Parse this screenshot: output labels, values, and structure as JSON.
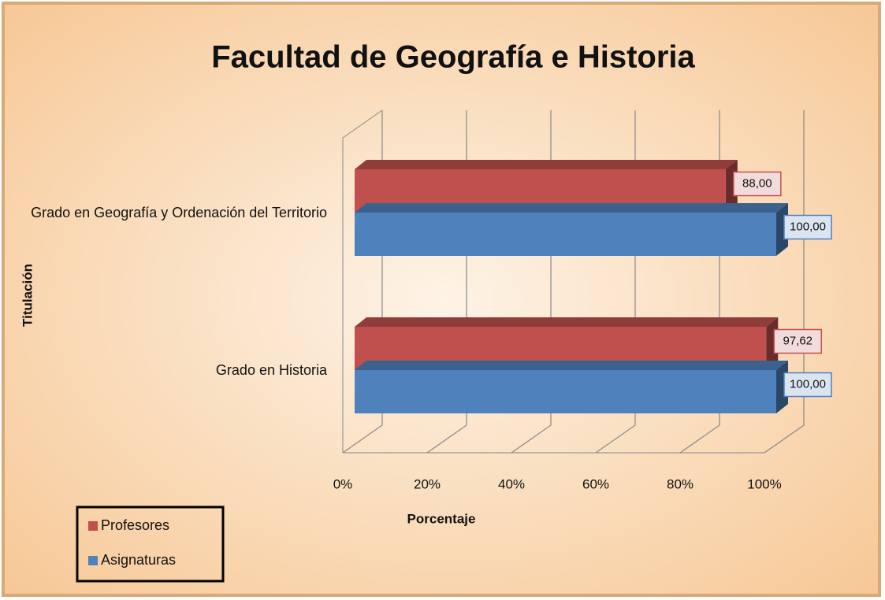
{
  "chart_data": {
    "type": "bar3d",
    "title": "Facultad de Geografía e Historia",
    "categories": [
      "Grado en Geografía y Ordenación del Territorio",
      "Grado en Historia"
    ],
    "series": [
      {
        "name": "Profesores",
        "color": "#c0504d",
        "values": [
          88,
          97.62
        ],
        "value_labels": [
          "88,00",
          "97,62"
        ]
      },
      {
        "name": "Asignaturas",
        "color": "#4f81bd",
        "values": [
          100,
          100
        ],
        "value_labels": [
          "100,00",
          "100,00"
        ]
      }
    ],
    "xlim": [
      0,
      100
    ],
    "xticks": [
      {
        "value": 0,
        "label": "0%"
      },
      {
        "value": 20,
        "label": "20%"
      },
      {
        "value": 40,
        "label": "40%"
      },
      {
        "value": 60,
        "label": "60%"
      },
      {
        "value": 80,
        "label": "80%"
      },
      {
        "value": 100,
        "label": "100%"
      }
    ],
    "xlabel": "Porcentaje",
    "ylabel": "Titulación",
    "grid": true,
    "legend": "bottom-left"
  }
}
